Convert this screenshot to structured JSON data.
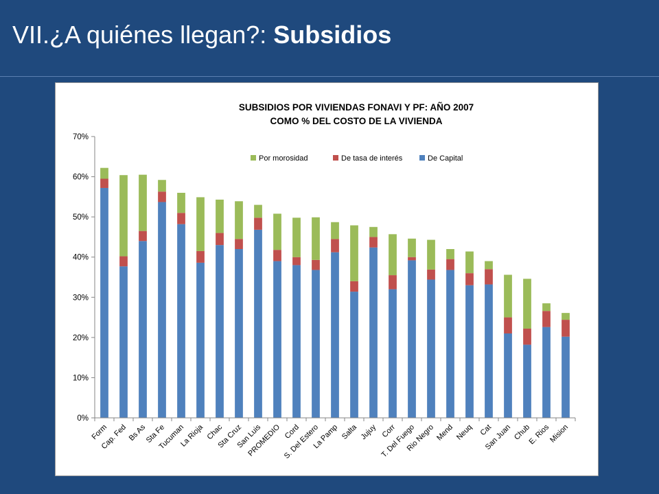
{
  "slide": {
    "title_regular": "VII.¿A quiénes llegan?: ",
    "title_bold": "Subsidios"
  },
  "colors": {
    "background": "#1F497D",
    "de_capital": "#4F81BD",
    "de_tasa": "#C0504D",
    "por_morosidad": "#9BBB59"
  },
  "chart_data": {
    "type": "bar",
    "stacked": true,
    "title": [
      "SUBSIDIOS POR VIVIENDAS FONAVI Y PF: AÑO 2007",
      "COMO % DEL COSTO DE LA VIVIENDA"
    ],
    "xlabel": "",
    "ylabel": "",
    "ylim": [
      0,
      0.7
    ],
    "yticks": [
      "0%",
      "10%",
      "20%",
      "30%",
      "40%",
      "50%",
      "60%",
      "70%"
    ],
    "grid": false,
    "legend_position": "top-right",
    "categories": [
      "Form",
      "Cap. Fed",
      "Bs As",
      "Sta Fe",
      "Tucuman",
      "La Rioja",
      "Chac",
      "Sta Cruz",
      "San Luis",
      "PROMEDIO",
      "Cord",
      "S. Del Estero",
      "La Pamp",
      "Salta",
      "Jujuy",
      "Corr",
      "T. Del Fuego",
      "Rio Negro",
      "Mend",
      "Neuq",
      "Cat",
      "San Juan",
      "Chub",
      "E. Rios",
      "Mision"
    ],
    "series": [
      {
        "name": "De Capital",
        "color": "#4F81BD",
        "values": [
          0.572,
          0.377,
          0.44,
          0.537,
          0.482,
          0.386,
          0.43,
          0.42,
          0.468,
          0.39,
          0.38,
          0.368,
          0.412,
          0.314,
          0.424,
          0.32,
          0.392,
          0.344,
          0.368,
          0.33,
          0.332,
          0.21,
          0.182,
          0.226,
          0.202
        ]
      },
      {
        "name": "De tasa de interés",
        "color": "#C0504D",
        "values": [
          0.023,
          0.025,
          0.025,
          0.026,
          0.028,
          0.029,
          0.03,
          0.025,
          0.03,
          0.028,
          0.02,
          0.025,
          0.033,
          0.026,
          0.026,
          0.035,
          0.008,
          0.025,
          0.027,
          0.03,
          0.038,
          0.04,
          0.04,
          0.04,
          0.042
        ]
      },
      {
        "name": "Por morosidad",
        "color": "#9BBB59",
        "values": [
          0.027,
          0.202,
          0.14,
          0.029,
          0.05,
          0.134,
          0.083,
          0.094,
          0.032,
          0.09,
          0.098,
          0.106,
          0.042,
          0.139,
          0.025,
          0.102,
          0.046,
          0.074,
          0.025,
          0.054,
          0.02,
          0.106,
          0.124,
          0.019,
          0.017
        ]
      }
    ],
    "legend_order": [
      "Por morosidad",
      "De tasa de interés",
      "De Capital"
    ]
  }
}
